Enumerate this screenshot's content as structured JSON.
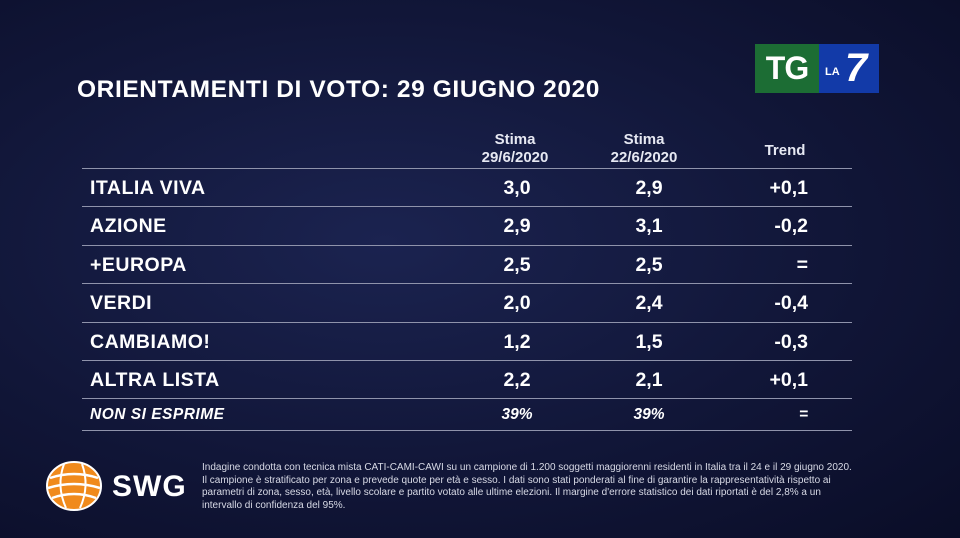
{
  "title": "ORIENTAMENTI DI VOTO: 29 GIUGNO 2020",
  "broadcaster": {
    "tg": "TG",
    "la": "LA",
    "seven": "7"
  },
  "columns": {
    "c1_line1": "Stima",
    "c1_line2": "29/6/2020",
    "c2_line1": "Stima",
    "c2_line2": "22/6/2020",
    "c3": "Trend"
  },
  "rows": [
    {
      "name": "ITALIA VIVA",
      "v1": "3,0",
      "v2": "2,9",
      "trend": "+0,1"
    },
    {
      "name": "AZIONE",
      "v1": "2,9",
      "v2": "3,1",
      "trend": "-0,2"
    },
    {
      "name": "+EUROPA",
      "v1": "2,5",
      "v2": "2,5",
      "trend": "="
    },
    {
      "name": "VERDI",
      "v1": "2,0",
      "v2": "2,4",
      "trend": "-0,4"
    },
    {
      "name": "CAMBIAMO!",
      "v1": "1,2",
      "v2": "1,5",
      "trend": "-0,3"
    },
    {
      "name": "ALTRA LISTA",
      "v1": "2,2",
      "v2": "2,1",
      "trend": "+0,1"
    },
    {
      "name": "NON SI ESPRIME",
      "v1": "39%",
      "v2": "39%",
      "trend": "="
    }
  ],
  "pollster": "SWG",
  "note": "Indagine condotta con tecnica mista CATI-CAMI-CAWI su un campione di 1.200 soggetti maggiorenni residenti in Italia tra il 24 e il 29 giugno 2020. Il campione è stratificato per zona e prevede quote per età e sesso. I dati sono stati ponderati al fine di garantire la rappresentatività rispetto ai parametri di zona, sesso, età, livello scolare e partito votato alle ultime elezioni. Il margine d'errore statistico dei dati riportati è del 2,8% a un intervallo di confidenza del 95%.",
  "colors": {
    "background": "#111638",
    "tg_green": "#1c6d34",
    "la7_blue": "#123aa8",
    "swg_orange": "#f08a1c"
  }
}
